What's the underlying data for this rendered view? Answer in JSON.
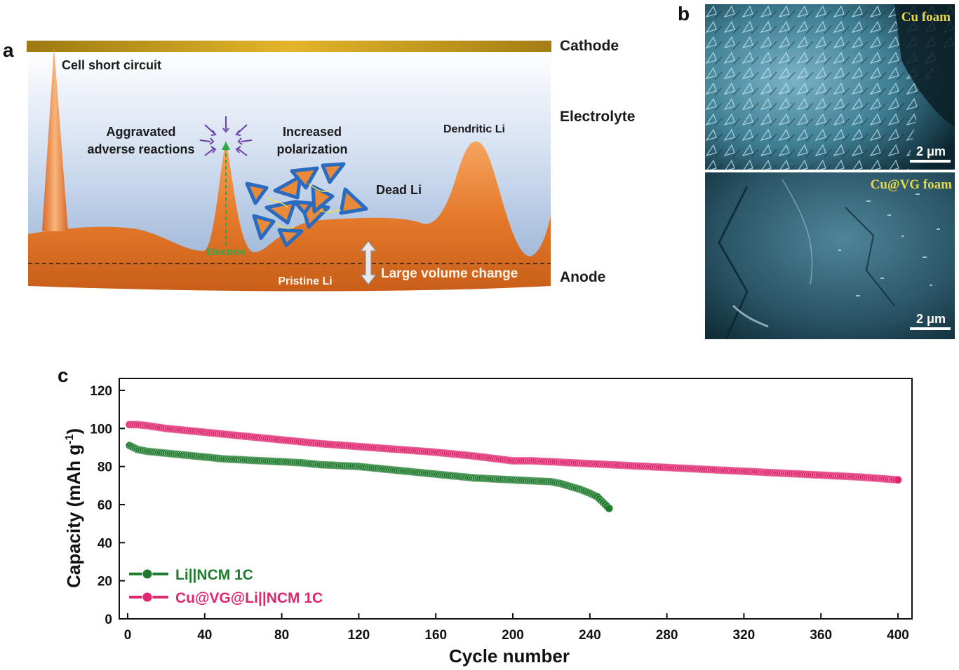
{
  "panel_a": {
    "letter": "a",
    "labels": {
      "cathode": "Cathode",
      "electrolyte": "Electrolyte",
      "anode": "Anode",
      "short_circuit": "Cell short circuit",
      "aggravated_1": "Aggravated",
      "aggravated_2": "adverse reactions",
      "polarization_1": "Increased",
      "polarization_2": "polarization",
      "dendritic": "Dendritic Li",
      "dead_li": "Dead Li",
      "electron": "Electron",
      "pristine": "Pristine Li",
      "volume_change": "Large volume change"
    }
  },
  "panel_b": {
    "letter": "b",
    "top_label": "Cu foam",
    "bottom_label": "Cu@VG foam",
    "scale_top": "2 μm",
    "scale_bottom": "2 μm"
  },
  "panel_c": {
    "letter": "c"
  },
  "chart_data": {
    "type": "scatter",
    "title": "",
    "xlabel": "Cycle number",
    "ylabel": "Capacity (mAh g",
    "ylabel_sup": "-1",
    "ylabel_end": ")",
    "xlim": [
      0,
      400
    ],
    "ylim": [
      0,
      120
    ],
    "xticks": [
      0,
      40,
      80,
      120,
      160,
      200,
      240,
      280,
      320,
      360,
      400
    ],
    "yticks": [
      0,
      20,
      40,
      60,
      80,
      100,
      120
    ],
    "legend_position": "bottom-left",
    "grid": false,
    "series": [
      {
        "name": "Li||NCM 1C",
        "color": "#1e7b2d",
        "x": [
          1,
          5,
          10,
          20,
          30,
          40,
          50,
          60,
          70,
          80,
          90,
          100,
          110,
          120,
          130,
          140,
          150,
          160,
          170,
          180,
          190,
          200,
          210,
          220,
          225,
          230,
          235,
          240,
          244,
          247,
          250
        ],
        "y": [
          91,
          89,
          88,
          87,
          86,
          85,
          84,
          83.5,
          83,
          82.5,
          82,
          81,
          80.5,
          80,
          79,
          78,
          77,
          76,
          75,
          74,
          73.5,
          73,
          72.5,
          72,
          71,
          69.5,
          68,
          66,
          64,
          61,
          58
        ]
      },
      {
        "name": "Cu@VG@Li||NCM 1C",
        "color": "#e0266e",
        "x": [
          1,
          5,
          10,
          20,
          40,
          60,
          80,
          100,
          120,
          140,
          160,
          180,
          200,
          210,
          220,
          240,
          260,
          280,
          300,
          320,
          340,
          360,
          380,
          400
        ],
        "y": [
          102,
          102,
          101.5,
          100,
          98,
          96,
          94,
          92,
          90.5,
          89,
          87.5,
          85.5,
          83,
          83,
          82.5,
          81.5,
          80.5,
          79.5,
          78.5,
          77.5,
          76.5,
          75.5,
          74.5,
          73
        ]
      }
    ]
  }
}
